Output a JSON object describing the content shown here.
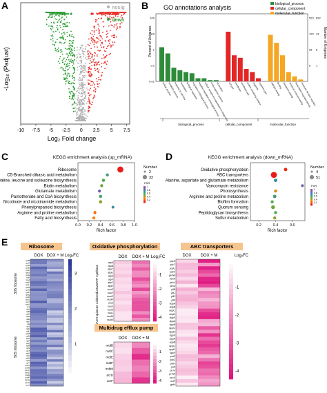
{
  "panel_letters": [
    "A",
    "B",
    "C",
    "D",
    "E"
  ],
  "chart_data": [
    {
      "panel": "A",
      "type": "scatter",
      "xlabel": "Log₂ Fold change",
      "ylabel": "-Log₁₀ (Padjust)",
      "xticks": [
        "-10",
        "-7.5",
        "-5",
        "-2.5",
        "0",
        "2.5",
        "5",
        "7.5"
      ],
      "xlim": [
        -10,
        8
      ],
      "legend": [
        {
          "label": "nosig",
          "color": "#b0b0b0"
        },
        {
          "label": "up",
          "color": "#e8322b"
        },
        {
          "label": "down",
          "color": "#2e9e34"
        }
      ],
      "point_summary": [
        {
          "series": "nosig",
          "x_range": [
            -1.5,
            1.5
          ],
          "note": "central column"
        },
        {
          "series": "down",
          "x_range": [
            -6,
            -1
          ],
          "note": "left wing, dense band at top"
        },
        {
          "series": "up",
          "x_range": [
            1,
            7.5
          ],
          "note": "right wing, dense band at top"
        }
      ]
    },
    {
      "panel": "B",
      "type": "bar",
      "title": "GO annotations analysis",
      "ylabel_left": "Percent of Unigenes",
      "ylabel_right": "Number of Unigenes",
      "left_ticks": [
        "0.01",
        "0.1",
        "1",
        "10",
        "100"
      ],
      "right_ticks": [
        "5",
        "26",
        "129",
        "523"
      ],
      "right_ticks_secondary": [
        "1",
        "6",
        "43",
        "692"
      ],
      "legend": [
        {
          "label": "biological_process",
          "color": "#2e8b3a"
        },
        {
          "label": "cellular_component",
          "color": "#e32626"
        },
        {
          "label": "molecular_function",
          "color": "#f5a623"
        }
      ],
      "groups": [
        "biological_process",
        "cellular_component",
        "molecular_function"
      ],
      "categories": [
        "cellular process",
        "metabolic process",
        "response to stimulus",
        "localization",
        "biological regulation",
        "regulation of biological process",
        "negative regulation of biological process",
        "cellular component organization or biogenesis",
        "multi-organism process",
        "locomotion",
        "cell part",
        "membrane",
        "membrane part",
        "protein-containing complex",
        "organelle",
        "organelle part",
        "catalytic activity",
        "binding",
        "transporter activity",
        "structural molecule activity",
        "transcription regulator activity",
        "molecular function regulator"
      ],
      "values": [
        0.55,
        0.45,
        0.22,
        0.18,
        0.15,
        0.13,
        0.05,
        0.05,
        0.02,
        0.02,
        0.8,
        0.42,
        0.38,
        0.2,
        0.15,
        0.05,
        0.75,
        0.62,
        0.42,
        0.15,
        0.08,
        0.03
      ],
      "group_index": [
        0,
        0,
        0,
        0,
        0,
        0,
        0,
        0,
        0,
        0,
        1,
        1,
        1,
        1,
        1,
        1,
        2,
        2,
        2,
        2,
        2,
        2
      ]
    },
    {
      "panel": "C",
      "type": "scatter",
      "title": "KEGG enrichment analysis (up_mRNA)",
      "xlabel": "Rich factor",
      "xticks": [
        "0.0",
        "0.2",
        "0.4",
        "0.6",
        "0.8",
        "1.0"
      ],
      "xlim": [
        0.0,
        1.0
      ],
      "size_legend_title": "Number",
      "size_legend": [
        "2",
        "32"
      ],
      "color_legend_title": "FDR",
      "color_legend_ticks": [
        "1",
        "0.8",
        "0.6",
        "0.4",
        "0.2"
      ],
      "categories": [
        "Ribosome",
        "C5-Branched dibasic acid metabolism",
        "Valine, leucine and isoleucine biosynthesis",
        "Biotin metabolism",
        "Glutamate metabolism",
        "Pantothenate and CoA biosynthesis",
        "Nicotinate and nicotinamide metabolism",
        "Phenylpropanoid biosynthesis",
        "Arginine and proline metabolism",
        "Fatty acid biosynthesis"
      ],
      "x": [
        0.75,
        0.52,
        0.45,
        0.42,
        0.38,
        0.4,
        0.4,
        0.62,
        0.3,
        0.28
      ],
      "size": [
        32,
        3,
        4,
        3,
        3,
        4,
        4,
        2,
        3,
        3
      ],
      "fdr": [
        0.01,
        0.6,
        0.5,
        0.45,
        0.9,
        0.55,
        0.4,
        0.7,
        0.2,
        0.25
      ]
    },
    {
      "panel": "D",
      "type": "scatter",
      "title": "KEGG enrichment analysis (down_mRNA)",
      "xlabel": "Rich factor",
      "xticks": [
        "0.2",
        "0.4",
        "0.6"
      ],
      "xlim": [
        0.1,
        0.75
      ],
      "size_legend_title": "Number",
      "size_legend": [
        "4",
        "51"
      ],
      "color_legend_title": "FDR",
      "color_legend_ticks": [
        "1",
        "0.8",
        "0.6",
        "0.4",
        "0.2"
      ],
      "categories": [
        "Oxidative phosphorylation",
        "ABC transporters",
        "Alanine, aspartate and glutamate metabolism",
        "Vancomycin resistance",
        "Photosynthesis",
        "Arginine and proline metabolism",
        "Biofilm formation",
        "Quorum sensing",
        "Peptidoglycan biosynthesis",
        "Sulfur metabolism"
      ],
      "x": [
        0.52,
        0.38,
        0.4,
        0.72,
        0.4,
        0.39,
        0.36,
        0.37,
        0.4,
        0.39
      ],
      "size": [
        8,
        51,
        8,
        4,
        5,
        8,
        5,
        12,
        5,
        5
      ],
      "fdr": [
        0.05,
        0.01,
        0.7,
        0.9,
        0.3,
        0.6,
        0.5,
        0.45,
        0.5,
        0.4
      ]
    },
    {
      "panel": "E",
      "type": "heatmap",
      "blocks": [
        {
          "title": "Ribosome",
          "columns": [
            "DOX",
            "DOX + M"
          ],
          "scale_label": "Log₂FC",
          "scale_ticks": [
            "3",
            "2",
            "1"
          ],
          "scale_range": [
            0,
            3.4
          ],
          "sections": [
            "30S ribosome",
            "50S ribosome"
          ],
          "genes_30S": [
            "rpsB",
            "rpsC",
            "rpsD",
            "rpsE",
            "rpsF",
            "rpsG",
            "rpsH",
            "rpsI",
            "rpsJ",
            "rpsK",
            "rpsL",
            "rpsM",
            "rpsN",
            "rpsP",
            "rpsQ",
            "rpsR",
            "rpsS",
            "rpsT",
            "rpsU",
            "sra"
          ],
          "genes_50S": [
            "rplA",
            "rplB",
            "rplC",
            "rplD",
            "rplE",
            "rplF",
            "rplI",
            "rplJ",
            "rplK",
            "rplL",
            "rplM",
            "rplN",
            "rplO",
            "rplP",
            "rplQ",
            "rplR",
            "rplS",
            "rplT",
            "rplU",
            "rplV",
            "rplW",
            "rplX",
            "rplY",
            "rpmA",
            "rpmB",
            "rpmC",
            "rpmD",
            "rpmE",
            "rpmF",
            "rpmG",
            "rpmH",
            "rpmI"
          ]
        },
        {
          "title": "Oxidative phosphorylation",
          "columns": [
            "DOX",
            "DOX + M"
          ],
          "scale_label": "Log₂FC",
          "scale_ticks": [
            "-1",
            "-2",
            "-3",
            "-4"
          ],
          "scale_range": [
            -4.3,
            0
          ],
          "sections": [
            "ATP synthase",
            "NADH-quinone oxidoreductase"
          ],
          "genes": [
            "atpA",
            "atpB",
            "atpC",
            "atpD",
            "atpE",
            "atpF",
            "atpG",
            "atpH",
            "nuoE",
            "nuoF",
            "nuoG",
            "nuoH",
            "nuoI",
            "nuoJ",
            "nuoK",
            "nuoL",
            "nuoM",
            "nuoN"
          ]
        },
        {
          "title": "Multidrug efflux pump",
          "columns": [
            "DOX",
            "DOX + M"
          ],
          "scale_ticks": [
            "-1",
            "-2",
            "-3",
            "-4"
          ],
          "scale_range": [
            -4.3,
            0
          ],
          "genes": [
            "mdtB",
            "mdtC",
            "mdtE",
            "mdtF",
            "mdtM",
            "acrD",
            "acrF"
          ]
        },
        {
          "title": "ABC transporters",
          "columns": [
            "DOX",
            "DOX + M"
          ],
          "scale_label": "Log₂FC",
          "scale_ticks": [
            "-1",
            "-2",
            "-3",
            "-4"
          ],
          "scale_range": [
            -4.3,
            0
          ],
          "genes": [
            "ydcS",
            "ydcT",
            "ydcU",
            "ydcV",
            "yehW",
            "yehX",
            "yehY",
            "yehZ",
            "yliB",
            "yliC",
            "yliD",
            "yliE",
            "ddpA",
            "ddpB",
            "ddpC",
            "ddpD",
            "ddpF",
            "dppA",
            "dppB",
            "dppC",
            "dppD",
            "dppF",
            "oppA",
            "oppB",
            "oppC",
            "oppD",
            "oppF",
            "potF",
            "potG",
            "potH",
            "potI",
            "proV",
            "proW",
            "proX",
            "artP",
            "glnH"
          ]
        }
      ]
    }
  ]
}
